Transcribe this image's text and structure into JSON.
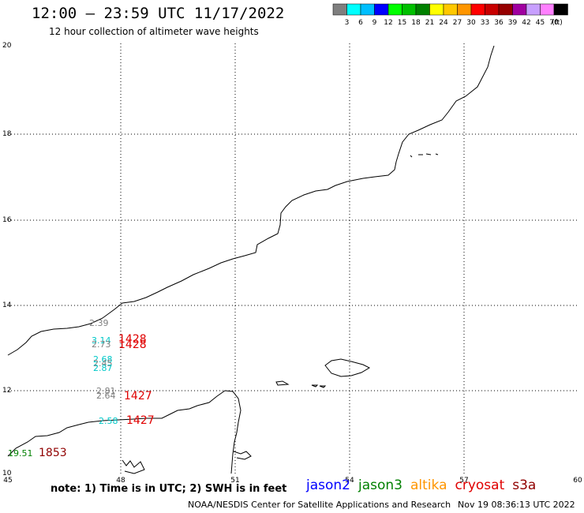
{
  "header": {
    "title": "12:00 — 23:59 UTC 11/17/2022",
    "subtitle": "12 hour collection of altimeter wave heights"
  },
  "legend": {
    "colors": [
      "#7f7f7f",
      "#00ffff",
      "#00bfff",
      "#0000ff",
      "#00ff00",
      "#00c000",
      "#008000",
      "#ffff00",
      "#ffc800",
      "#ff9600",
      "#ff0000",
      "#c80000",
      "#960000",
      "#a000a0",
      "#c8a0ff",
      "#ff80ff",
      "#000000"
    ],
    "labels": [
      "3",
      "6",
      "9",
      "12",
      "15",
      "18",
      "21",
      "24",
      "27",
      "30",
      "33",
      "36",
      "39",
      "42",
      "45",
      "70",
      "(ft)"
    ]
  },
  "axes": {
    "x_ticks": [
      "45",
      "48",
      "51",
      "54",
      "57",
      "60"
    ],
    "y_ticks": [
      "20",
      "18",
      "16",
      "14",
      "12",
      "10"
    ]
  },
  "labels": [
    {
      "text": "2.39",
      "color": "#808080"
    },
    {
      "text": "3.14",
      "color": "#00c8c8"
    },
    {
      "text": "2.73",
      "color": "#808080"
    },
    {
      "text": "1428",
      "color": "#e00000"
    },
    {
      "text": "1428",
      "color": "#e00000"
    },
    {
      "text": "2.68",
      "color": "#00c8c8"
    },
    {
      "text": "2.45",
      "color": "#808080"
    },
    {
      "text": "2.87",
      "color": "#00c8c8"
    },
    {
      "text": "2.81",
      "color": "#808080"
    },
    {
      "text": "2.64",
      "color": "#808080"
    },
    {
      "text": "1427",
      "color": "#e00000"
    },
    {
      "text": "2.58",
      "color": "#00c8c8"
    },
    {
      "text": "1427",
      "color": "#e00000"
    },
    {
      "text": "19.51",
      "color": "#008000"
    },
    {
      "text": "1853",
      "color": "#900000"
    }
  ],
  "footer": {
    "note": "note: 1) Time is in UTC; 2) SWH is in feet",
    "satellites": [
      {
        "name": "jason2",
        "color": "#0000ff"
      },
      {
        "name": "jason3",
        "color": "#008000"
      },
      {
        "name": "altika",
        "color": "#ff9600"
      },
      {
        "name": "cryosat",
        "color": "#e00000"
      },
      {
        "name": "s3a",
        "color": "#900000"
      }
    ],
    "credit": "NOAA/NESDIS Center for Satellite Applications and Research",
    "timestamp": "Nov 19 08:36:13 UTC 2022"
  }
}
